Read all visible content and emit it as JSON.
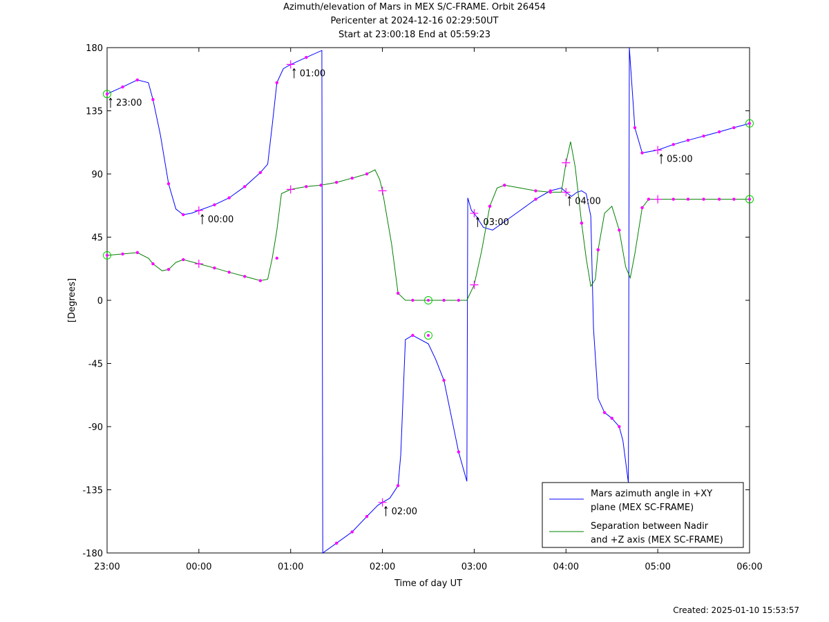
{
  "title": {
    "line1": "Azimuth/elevation of Mars in MEX S/C-FRAME.  Orbit 26454",
    "line2": "Pericenter at 2024-12-16 02:29:50UT",
    "line3": "Start at 23:00:18 End at 05:59:23"
  },
  "created": "Created: 2025-01-10 15:53:57",
  "chart_data": {
    "type": "line",
    "xlabel": "Time of day UT",
    "ylabel": "[Degrees]",
    "x_unit": "hours since 23:00",
    "xlim": [
      0,
      7
    ],
    "ylim": [
      -180,
      180
    ],
    "grid": false,
    "legend_position": "bottom-right",
    "x_ticks": [
      {
        "v": 0,
        "label": "23:00"
      },
      {
        "v": 1,
        "label": "00:00"
      },
      {
        "v": 2,
        "label": "01:00"
      },
      {
        "v": 3,
        "label": "02:00"
      },
      {
        "v": 4,
        "label": "03:00"
      },
      {
        "v": 5,
        "label": "04:00"
      },
      {
        "v": 6,
        "label": "05:00"
      },
      {
        "v": 7,
        "label": "06:00"
      }
    ],
    "y_ticks": [
      {
        "v": 180,
        "label": "180"
      },
      {
        "v": 135,
        "label": "135"
      },
      {
        "v": 90,
        "label": "90"
      },
      {
        "v": 45,
        "label": "45"
      },
      {
        "v": 0,
        "label": "0"
      },
      {
        "v": -45,
        "label": "-45"
      },
      {
        "v": -90,
        "label": "-90"
      },
      {
        "v": -135,
        "label": "-135"
      },
      {
        "v": -180,
        "label": "-180"
      }
    ],
    "series": [
      {
        "name": "Mars azimuth angle in +XY plane (MEX SC-FRAME)",
        "color": "#0000ff",
        "points": [
          [
            0,
            147
          ],
          [
            0.17,
            152
          ],
          [
            0.33,
            157
          ],
          [
            0.45,
            155
          ],
          [
            0.5,
            143
          ],
          [
            0.58,
            118
          ],
          [
            0.67,
            83
          ],
          [
            0.75,
            65
          ],
          [
            0.83,
            61
          ],
          [
            0.92,
            62
          ],
          [
            1.0,
            64
          ],
          [
            1.17,
            68
          ],
          [
            1.33,
            73
          ],
          [
            1.5,
            81
          ],
          [
            1.67,
            91
          ],
          [
            1.75,
            97
          ],
          [
            1.8,
            125
          ],
          [
            1.85,
            155
          ],
          [
            1.92,
            165
          ],
          [
            2.0,
            168
          ],
          [
            2.17,
            173
          ],
          [
            2.34,
            178
          ],
          [
            2.35,
            -180
          ],
          [
            2.5,
            -173
          ],
          [
            2.67,
            -165
          ],
          [
            2.83,
            -154
          ],
          [
            2.95,
            -146
          ],
          [
            3.0,
            -144
          ],
          [
            3.08,
            -141
          ],
          [
            3.17,
            -132
          ],
          [
            3.2,
            -110
          ],
          [
            3.25,
            -28
          ],
          [
            3.33,
            -25
          ],
          [
            3.5,
            -31
          ],
          [
            3.58,
            -42
          ],
          [
            3.67,
            -57
          ],
          [
            3.83,
            -108
          ],
          [
            3.92,
            -129
          ],
          [
            3.93,
            73
          ],
          [
            3.97,
            64
          ],
          [
            4.0,
            62
          ],
          [
            4.1,
            52
          ],
          [
            4.2,
            50
          ],
          [
            4.33,
            56
          ],
          [
            4.5,
            64
          ],
          [
            4.67,
            72
          ],
          [
            4.83,
            78
          ],
          [
            4.95,
            80
          ],
          [
            5.0,
            77
          ],
          [
            5.06,
            74
          ],
          [
            5.12,
            77
          ],
          [
            5.17,
            78
          ],
          [
            5.22,
            76
          ],
          [
            5.27,
            60
          ],
          [
            5.3,
            -20
          ],
          [
            5.35,
            -70
          ],
          [
            5.42,
            -80
          ],
          [
            5.5,
            -84
          ],
          [
            5.58,
            -90
          ],
          [
            5.62,
            -100
          ],
          [
            5.68,
            -130
          ],
          [
            5.69,
            180
          ],
          [
            5.75,
            123
          ],
          [
            5.83,
            105
          ],
          [
            6.0,
            107
          ],
          [
            6.17,
            111
          ],
          [
            6.33,
            114
          ],
          [
            6.5,
            117
          ],
          [
            6.67,
            120
          ],
          [
            6.83,
            123
          ],
          [
            7.0,
            126
          ]
        ]
      },
      {
        "name": "Separation between Nadir and +Z axis (MEX SC-FRAME)",
        "color": "#008000",
        "points": [
          [
            0,
            32
          ],
          [
            0.17,
            33
          ],
          [
            0.33,
            34
          ],
          [
            0.45,
            30
          ],
          [
            0.5,
            26
          ],
          [
            0.6,
            21
          ],
          [
            0.67,
            22
          ],
          [
            0.75,
            27
          ],
          [
            0.83,
            29
          ],
          [
            1.0,
            26
          ],
          [
            1.17,
            23
          ],
          [
            1.33,
            20
          ],
          [
            1.5,
            17
          ],
          [
            1.67,
            14
          ],
          [
            1.75,
            15
          ],
          [
            1.8,
            30
          ],
          [
            1.85,
            50
          ],
          [
            1.9,
            76
          ],
          [
            2.0,
            79
          ],
          [
            2.17,
            81
          ],
          [
            2.33,
            82
          ],
          [
            2.5,
            84
          ],
          [
            2.67,
            87
          ],
          [
            2.83,
            90
          ],
          [
            2.92,
            93
          ],
          [
            2.97,
            86
          ],
          [
            3.0,
            78
          ],
          [
            3.1,
            40
          ],
          [
            3.17,
            5
          ],
          [
            3.25,
            0
          ],
          [
            3.5,
            0
          ],
          [
            3.75,
            0
          ],
          [
            3.92,
            0
          ],
          [
            4.0,
            11
          ],
          [
            4.08,
            35
          ],
          [
            4.17,
            67
          ],
          [
            4.25,
            80
          ],
          [
            4.33,
            82
          ],
          [
            4.5,
            80
          ],
          [
            4.67,
            78
          ],
          [
            4.83,
            77
          ],
          [
            4.95,
            77
          ],
          [
            5.0,
            98
          ],
          [
            5.05,
            113
          ],
          [
            5.1,
            95
          ],
          [
            5.17,
            55
          ],
          [
            5.22,
            30
          ],
          [
            5.27,
            10
          ],
          [
            5.32,
            15
          ],
          [
            5.35,
            36
          ],
          [
            5.42,
            62
          ],
          [
            5.5,
            67
          ],
          [
            5.58,
            50
          ],
          [
            5.65,
            24
          ],
          [
            5.7,
            16
          ],
          [
            5.75,
            33
          ],
          [
            5.83,
            66
          ],
          [
            5.9,
            72
          ],
          [
            6.0,
            72
          ],
          [
            6.17,
            72
          ],
          [
            6.33,
            72
          ],
          [
            6.5,
            72
          ],
          [
            6.67,
            72
          ],
          [
            6.83,
            72
          ],
          [
            7.0,
            72
          ]
        ]
      }
    ],
    "dot_markers": [
      [
        0.17,
        152
      ],
      [
        0.33,
        157
      ],
      [
        0.5,
        143
      ],
      [
        0.67,
        83
      ],
      [
        0.83,
        61
      ],
      [
        1.17,
        68
      ],
      [
        1.33,
        73
      ],
      [
        1.5,
        81
      ],
      [
        1.67,
        91
      ],
      [
        1.85,
        155
      ],
      [
        2.17,
        173
      ],
      [
        2.5,
        -173
      ],
      [
        2.67,
        -165
      ],
      [
        2.83,
        -154
      ],
      [
        3.17,
        -132
      ],
      [
        3.33,
        -25
      ],
      [
        3.67,
        -57
      ],
      [
        3.83,
        -108
      ],
      [
        4.17,
        67
      ],
      [
        4.33,
        82
      ],
      [
        4.67,
        72
      ],
      [
        4.83,
        78
      ],
      [
        5.17,
        55
      ],
      [
        5.35,
        36
      ],
      [
        5.42,
        -80
      ],
      [
        5.5,
        -84
      ],
      [
        5.58,
        -90
      ],
      [
        5.75,
        123
      ],
      [
        5.83,
        105
      ],
      [
        6.17,
        111
      ],
      [
        6.33,
        114
      ],
      [
        6.5,
        117
      ],
      [
        6.67,
        120
      ],
      [
        6.83,
        123
      ],
      [
        0.17,
        33
      ],
      [
        0.33,
        34
      ],
      [
        0.5,
        26
      ],
      [
        0.67,
        22
      ],
      [
        0.83,
        29
      ],
      [
        1.17,
        23
      ],
      [
        1.33,
        20
      ],
      [
        1.5,
        17
      ],
      [
        1.67,
        14
      ],
      [
        1.85,
        30
      ],
      [
        2.17,
        81
      ],
      [
        2.33,
        82
      ],
      [
        2.5,
        84
      ],
      [
        2.67,
        87
      ],
      [
        2.83,
        90
      ],
      [
        3.17,
        5
      ],
      [
        3.33,
        0
      ],
      [
        3.67,
        0
      ],
      [
        3.83,
        0
      ],
      [
        4.17,
        67
      ],
      [
        4.33,
        82
      ],
      [
        4.67,
        78
      ],
      [
        4.83,
        77
      ],
      [
        5.17,
        55
      ],
      [
        5.35,
        36
      ],
      [
        5.58,
        50
      ],
      [
        5.83,
        66
      ],
      [
        5.9,
        72
      ],
      [
        6.17,
        72
      ],
      [
        6.33,
        72
      ],
      [
        6.5,
        72
      ],
      [
        6.67,
        72
      ],
      [
        6.83,
        72
      ]
    ],
    "cross_markers": [
      [
        1.0,
        64
      ],
      [
        2.0,
        168
      ],
      [
        3.0,
        -144
      ],
      [
        4.0,
        62
      ],
      [
        5.0,
        77
      ],
      [
        6.0,
        107
      ],
      [
        1.0,
        26
      ],
      [
        2.0,
        79
      ],
      [
        3.0,
        78
      ],
      [
        4.0,
        11
      ],
      [
        5.0,
        98
      ],
      [
        6.0,
        72
      ]
    ],
    "circle_markers": [
      [
        0,
        147
      ],
      [
        0,
        32
      ],
      [
        3.5,
        0
      ],
      [
        3.5,
        -25
      ],
      [
        7.0,
        126
      ],
      [
        7.0,
        72
      ]
    ],
    "annotations": [
      {
        "x": 0,
        "y": 147,
        "label": "23:00"
      },
      {
        "x": 1,
        "y": 64,
        "label": "00:00"
      },
      {
        "x": 2,
        "y": 168,
        "label": "01:00"
      },
      {
        "x": 3,
        "y": -144,
        "label": "02:00"
      },
      {
        "x": 4,
        "y": 62,
        "label": "03:00"
      },
      {
        "x": 5,
        "y": 77,
        "label": "04:00"
      },
      {
        "x": 6,
        "y": 107,
        "label": "05:00"
      }
    ],
    "legend": [
      {
        "line1": "Mars azimuth angle in +XY",
        "line2": "plane (MEX SC-FRAME)",
        "color": "#0000ff"
      },
      {
        "line1": "Separation between Nadir",
        "line2": "and +Z axis (MEX SC-FRAME)",
        "color": "#008000"
      }
    ],
    "marker_color": "#ff00ff",
    "circle_color": "#00cc00"
  }
}
